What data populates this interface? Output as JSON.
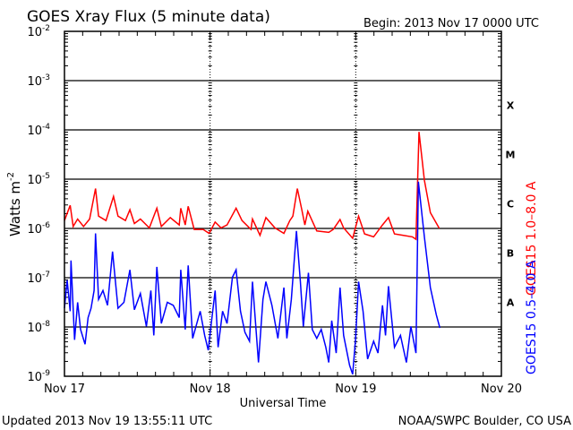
{
  "chart_data": {
    "type": "line",
    "title": "GOES Xray Flux (5 minute data)",
    "begin": "Begin:  2013 Nov 17 0000 UTC",
    "xlabel": "Universal Time",
    "ylabel": "Watts m",
    "ylabel_sup": "-2",
    "y_scale": "log",
    "ylim": [
      1e-09,
      0.01
    ],
    "y_ticks": [
      {
        "base": "10",
        "exp": "-2",
        "value": -2
      },
      {
        "base": "10",
        "exp": "-3",
        "value": -3
      },
      {
        "base": "10",
        "exp": "-4",
        "value": -4
      },
      {
        "base": "10",
        "exp": "-5",
        "value": -5
      },
      {
        "base": "10",
        "exp": "-6",
        "value": -6
      },
      {
        "base": "10",
        "exp": "-7",
        "value": -7
      },
      {
        "base": "10",
        "exp": "-8",
        "value": -8
      },
      {
        "base": "10",
        "exp": "-9",
        "value": -9
      }
    ],
    "x_ticks": [
      {
        "label": "Nov 17",
        "hours": 0
      },
      {
        "label": "Nov 18",
        "hours": 24
      },
      {
        "label": "Nov 19",
        "hours": 48
      },
      {
        "label": "Nov 20",
        "hours": 72
      }
    ],
    "xlim_hours_since_begin": [
      0,
      72
    ],
    "flare_classes": [
      {
        "label": "X",
        "level": -3.5
      },
      {
        "label": "M",
        "level": -4.5
      },
      {
        "label": "C",
        "level": -5.5
      },
      {
        "label": "B",
        "level": -6.5
      },
      {
        "label": "A",
        "level": -7.5
      }
    ],
    "grid": true,
    "series": [
      {
        "name": "GOES15 1.0–8.0 A",
        "color": "#ff0000",
        "points": [
          [
            0,
            -5.84
          ],
          [
            0.94,
            -5.53
          ],
          [
            1.43,
            -5.96
          ],
          [
            2.17,
            -5.81
          ],
          [
            3.15,
            -5.96
          ],
          [
            4.14,
            -5.81
          ],
          [
            5.12,
            -5.19
          ],
          [
            5.62,
            -5.75
          ],
          [
            6.85,
            -5.84
          ],
          [
            8.08,
            -5.35
          ],
          [
            8.82,
            -5.75
          ],
          [
            10.05,
            -5.84
          ],
          [
            10.79,
            -5.62
          ],
          [
            11.53,
            -5.9
          ],
          [
            12.51,
            -5.81
          ],
          [
            13.99,
            -5.99
          ],
          [
            15.22,
            -5.59
          ],
          [
            15.96,
            -5.96
          ],
          [
            17.44,
            -5.78
          ],
          [
            18.92,
            -5.93
          ],
          [
            19.16,
            -5.59
          ],
          [
            19.9,
            -5.93
          ],
          [
            20.39,
            -5.55
          ],
          [
            21.38,
            -6.02
          ],
          [
            22.86,
            -6.02
          ],
          [
            23.84,
            -6.1
          ],
          [
            24.83,
            -5.87
          ],
          [
            25.81,
            -5.99
          ],
          [
            26.8,
            -5.93
          ],
          [
            28.28,
            -5.59
          ],
          [
            29.26,
            -5.84
          ],
          [
            30.74,
            -6.02
          ],
          [
            30.99,
            -5.81
          ],
          [
            32.22,
            -6.14
          ],
          [
            33.2,
            -5.78
          ],
          [
            34.68,
            -5.99
          ],
          [
            36.16,
            -6.1
          ],
          [
            37.14,
            -5.84
          ],
          [
            37.64,
            -5.75
          ],
          [
            38.37,
            -5.19
          ],
          [
            39.11,
            -5.62
          ],
          [
            39.61,
            -5.93
          ],
          [
            40.1,
            -5.65
          ],
          [
            41.58,
            -6.05
          ],
          [
            43.55,
            -6.08
          ],
          [
            44.29,
            -6.02
          ],
          [
            45.42,
            -5.82
          ],
          [
            46.01,
            -5.99
          ],
          [
            47.49,
            -6.2
          ],
          [
            48.47,
            -5.75
          ],
          [
            49.46,
            -6.11
          ],
          [
            50.94,
            -6.17
          ],
          [
            52.41,
            -5.93
          ],
          [
            53.4,
            -5.78
          ],
          [
            54.38,
            -6.11
          ],
          [
            55.86,
            -6.14
          ],
          [
            57.34,
            -6.17
          ],
          [
            57.93,
            -6.22
          ],
          [
            58.42,
            -4.04
          ],
          [
            59.31,
            -5.02
          ],
          [
            60.3,
            -5.68
          ],
          [
            61.77,
            -6.0
          ]
        ]
      },
      {
        "name": "GOES15 0.5–4.0 A",
        "color": "#0000ff",
        "points": [
          [
            0,
            -7.62
          ],
          [
            0.44,
            -7.05
          ],
          [
            0.94,
            -7.68
          ],
          [
            1.08,
            -6.65
          ],
          [
            1.67,
            -8.26
          ],
          [
            2.17,
            -7.5
          ],
          [
            2.66,
            -8.05
          ],
          [
            3.4,
            -8.35
          ],
          [
            3.89,
            -7.81
          ],
          [
            4.38,
            -7.62
          ],
          [
            4.88,
            -7.26
          ],
          [
            5.12,
            -6.1
          ],
          [
            5.62,
            -7.44
          ],
          [
            6.35,
            -7.26
          ],
          [
            7.09,
            -7.56
          ],
          [
            7.93,
            -6.47
          ],
          [
            8.82,
            -7.62
          ],
          [
            9.8,
            -7.5
          ],
          [
            10.79,
            -6.84
          ],
          [
            11.53,
            -7.65
          ],
          [
            12.51,
            -7.32
          ],
          [
            13.5,
            -7.99
          ],
          [
            14.24,
            -7.26
          ],
          [
            14.73,
            -8.17
          ],
          [
            15.22,
            -6.78
          ],
          [
            15.96,
            -7.93
          ],
          [
            16.95,
            -7.5
          ],
          [
            17.93,
            -7.56
          ],
          [
            18.92,
            -7.81
          ],
          [
            19.16,
            -6.84
          ],
          [
            19.9,
            -8.05
          ],
          [
            20.39,
            -6.75
          ],
          [
            21.13,
            -8.23
          ],
          [
            22.36,
            -7.68
          ],
          [
            23.1,
            -8.17
          ],
          [
            23.69,
            -8.47
          ],
          [
            24.08,
            -8.05
          ],
          [
            24.83,
            -7.26
          ],
          [
            25.32,
            -8.41
          ],
          [
            26.06,
            -7.68
          ],
          [
            26.8,
            -7.93
          ],
          [
            27.68,
            -6.99
          ],
          [
            28.28,
            -6.84
          ],
          [
            29.01,
            -7.68
          ],
          [
            29.75,
            -8.11
          ],
          [
            30.49,
            -8.29
          ],
          [
            30.99,
            -7.08
          ],
          [
            31.97,
            -8.72
          ],
          [
            32.71,
            -7.44
          ],
          [
            33.2,
            -7.08
          ],
          [
            34.19,
            -7.56
          ],
          [
            35.17,
            -8.23
          ],
          [
            36.16,
            -7.2
          ],
          [
            36.65,
            -8.23
          ],
          [
            37.39,
            -7.44
          ],
          [
            38.23,
            -6.05
          ],
          [
            38.87,
            -7.08
          ],
          [
            39.36,
            -7.99
          ],
          [
            40.2,
            -6.9
          ],
          [
            40.84,
            -8.05
          ],
          [
            41.58,
            -8.23
          ],
          [
            42.32,
            -8.05
          ],
          [
            43.06,
            -8.41
          ],
          [
            43.55,
            -8.72
          ],
          [
            44.04,
            -7.87
          ],
          [
            44.78,
            -8.53
          ],
          [
            45.42,
            -7.2
          ],
          [
            46.01,
            -8.17
          ],
          [
            46.99,
            -8.78
          ],
          [
            47.49,
            -8.96
          ],
          [
            47.98,
            -8.23
          ],
          [
            48.47,
            -7.08
          ],
          [
            49.21,
            -7.68
          ],
          [
            49.95,
            -8.65
          ],
          [
            50.94,
            -8.29
          ],
          [
            51.67,
            -8.53
          ],
          [
            52.41,
            -7.56
          ],
          [
            52.91,
            -8.17
          ],
          [
            53.4,
            -7.17
          ],
          [
            54.38,
            -8.41
          ],
          [
            55.37,
            -8.17
          ],
          [
            56.35,
            -8.72
          ],
          [
            57.09,
            -7.99
          ],
          [
            57.93,
            -8.53
          ],
          [
            58.32,
            -5.05
          ],
          [
            59.31,
            -6.17
          ],
          [
            60.3,
            -7.2
          ],
          [
            61.28,
            -7.75
          ],
          [
            61.87,
            -8.02
          ]
        ]
      }
    ]
  },
  "footer": {
    "updated": "Updated 2013 Nov 19 13:55:11 UTC",
    "source": "NOAA/SWPC Boulder, CO USA"
  }
}
